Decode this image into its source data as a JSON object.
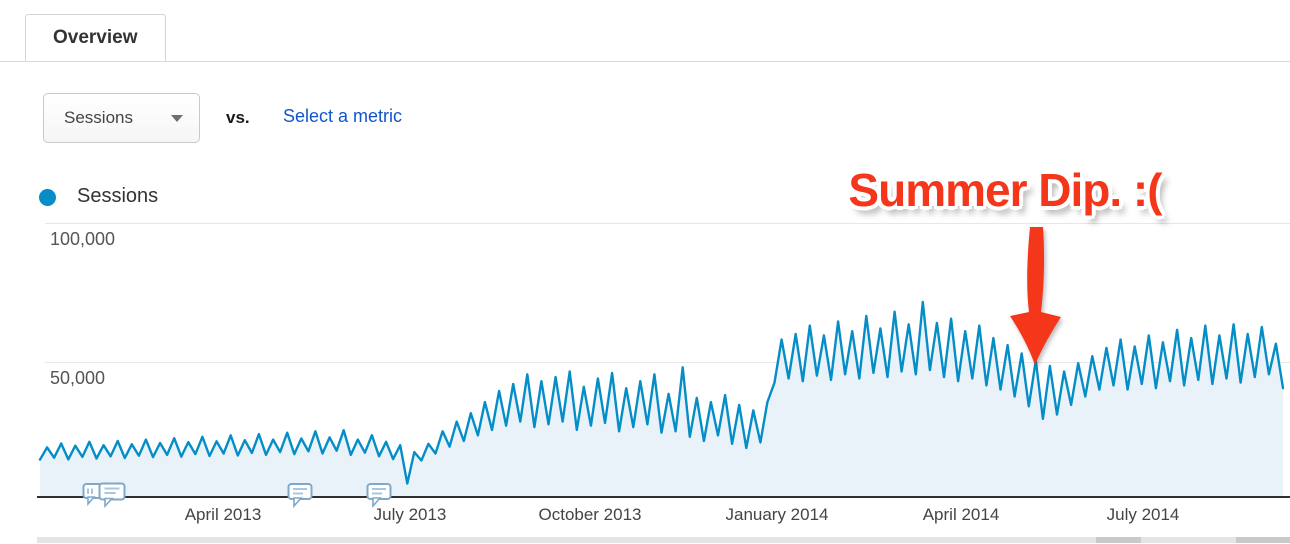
{
  "tab": {
    "label": "Overview"
  },
  "controls": {
    "metric_dropdown": {
      "value": "Sessions"
    },
    "vs_label": "vs.",
    "select_metric_link": "Select a metric"
  },
  "legend": {
    "series_label": "Sessions",
    "dot_color": "#058dc7"
  },
  "annotation": {
    "text": "Summer Dip. :(",
    "color": "#f4361a"
  },
  "colors": {
    "series_line": "#058dc7",
    "series_fill": "#e9f2f9",
    "link_blue": "#1155cc",
    "annotation_red": "#f4361a",
    "gridline": "#e7e7e7",
    "axis": "#2f2f2f"
  },
  "chart_data": {
    "type": "area",
    "title": "Sessions over time",
    "xlabel": "",
    "ylabel": "Sessions",
    "ylim": [
      0,
      110000
    ],
    "grid": true,
    "legend_position": "top-left",
    "x_axis": {
      "tick_labels": [
        "April 2013",
        "July 2013",
        "October 2013",
        "January 2014",
        "April 2014",
        "July 2014"
      ],
      "range_note": "daily values from January 2013 to September 2014"
    },
    "y_axis": {
      "tick_labels": [
        "100,000",
        "50,000"
      ],
      "ticks": [
        100000,
        50000
      ]
    },
    "axis_annotation_markers": [
      {
        "icon": "speech-bubbles-cluster"
      },
      {
        "icon": "speech-bubble"
      },
      {
        "icon": "speech-bubble"
      }
    ],
    "series": [
      {
        "name": "Sessions",
        "color": "#058dc7",
        "fill_color": "#e9f2f9",
        "values": [
          13800,
          18200,
          14500,
          19600,
          13900,
          18800,
          14800,
          20200,
          14200,
          19000,
          15000,
          20500,
          14400,
          19300,
          15200,
          21000,
          14700,
          19800,
          15500,
          21500,
          14900,
          20100,
          15800,
          22000,
          15100,
          20400,
          16000,
          22500,
          15300,
          20800,
          16200,
          23000,
          15500,
          21000,
          16500,
          23500,
          15800,
          21400,
          16800,
          24000,
          16000,
          21800,
          17000,
          24400,
          15500,
          21000,
          16300,
          22600,
          15000,
          20200,
          14000,
          19000,
          5200,
          16500,
          13500,
          19500,
          16000,
          24000,
          18500,
          27500,
          20500,
          30500,
          22500,
          34500,
          24500,
          38500,
          26000,
          41000,
          27500,
          44500,
          25500,
          42000,
          26500,
          43500,
          27500,
          45500,
          24500,
          40000,
          26000,
          43000,
          27000,
          45000,
          24000,
          39500,
          25500,
          42000,
          26500,
          44500,
          23500,
          37500,
          24000,
          47000,
          22000,
          36000,
          20500,
          34500,
          22500,
          37000,
          19500,
          33500,
          18000,
          31500,
          20000,
          34500,
          41500,
          57000,
          43000,
          59000,
          42000,
          62000,
          44000,
          58500,
          42500,
          63500,
          44500,
          60000,
          43000,
          65500,
          45000,
          61000,
          43500,
          67000,
          45500,
          62500,
          44500,
          70500,
          46000,
          63000,
          43500,
          64500,
          42000,
          60000,
          43000,
          62000,
          40500,
          57500,
          39000,
          55000,
          36500,
          52000,
          33000,
          49500,
          28500,
          47500,
          30000,
          45500,
          33500,
          48500,
          36500,
          51000,
          39000,
          54000,
          40500,
          57000,
          39000,
          54500,
          41000,
          58500,
          39500,
          56000,
          42000,
          60500,
          40500,
          57500,
          42500,
          62000,
          41000,
          58500,
          43000,
          62500,
          41500,
          59000,
          43500,
          61500,
          44500,
          55500,
          39500
        ]
      }
    ]
  }
}
